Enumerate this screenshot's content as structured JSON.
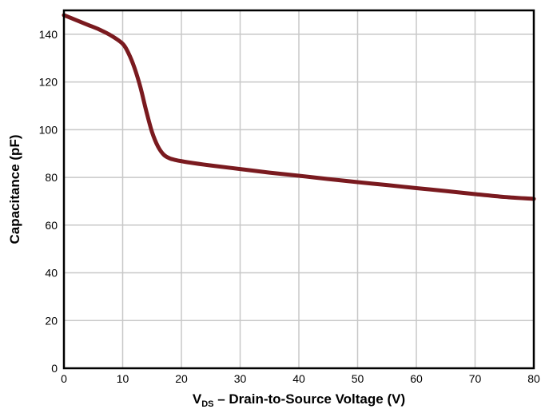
{
  "chart_data": {
    "type": "line",
    "title": "",
    "xlabel_main": "V",
    "xlabel_sub": "DS",
    "xlabel_rest": " – Drain-to-Source Voltage (V)",
    "ylabel": "Capacitance (pF)",
    "xlim": [
      0,
      80
    ],
    "ylim": [
      0,
      150
    ],
    "x_ticks": [
      0,
      10,
      20,
      30,
      40,
      50,
      60,
      70,
      80
    ],
    "y_ticks": [
      0,
      20,
      40,
      60,
      80,
      100,
      120,
      140
    ],
    "grid": true,
    "line_color": "#7a1a1f",
    "series": [
      {
        "x": [
          0,
          2,
          4,
          6,
          8,
          10,
          11,
          12,
          13,
          14,
          15,
          16,
          17,
          18,
          19,
          20,
          22,
          25,
          30,
          35,
          40,
          45,
          50,
          55,
          60,
          65,
          70,
          75,
          80
        ],
        "values": [
          148,
          146,
          144,
          142,
          139.5,
          136,
          132,
          126,
          118,
          108,
          99,
          93,
          89.5,
          88,
          87.3,
          86.8,
          86,
          85,
          83.5,
          82,
          80.7,
          79.3,
          78,
          76.8,
          75.5,
          74.3,
          73,
          71.8,
          71
        ]
      }
    ]
  }
}
